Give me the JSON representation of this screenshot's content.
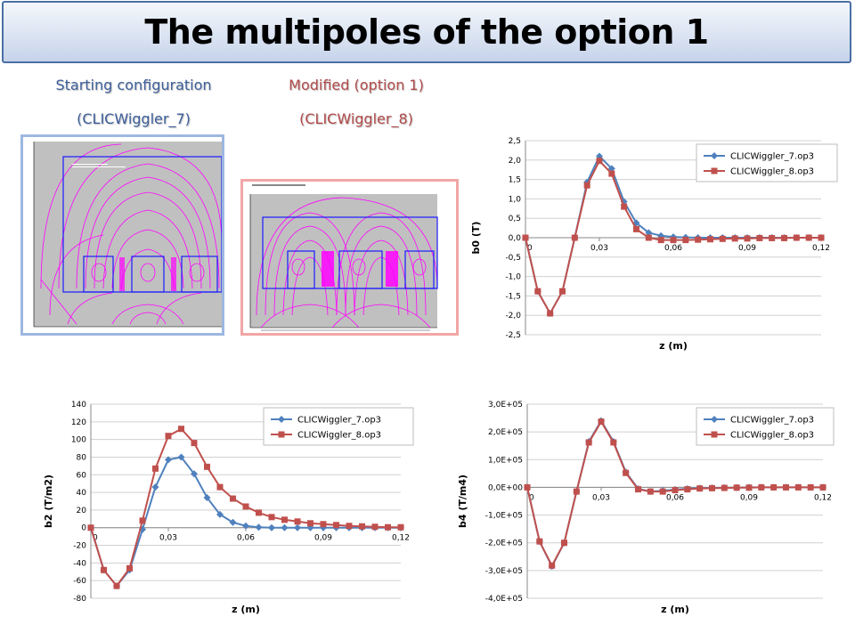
{
  "slide": {
    "title": "The multipoles of the option 1",
    "left_label_line1": "Starting configuration",
    "left_label_line2": "(CLICWiggler_7)",
    "right_label_line1": "Modified (option 1)",
    "right_label_line2": "(CLICWiggler_8)"
  },
  "colors": {
    "series_1": "#4f81bd",
    "series_2": "#c0504d",
    "title_border": "#4a6fa5",
    "field_lines": "#ff00ff",
    "thumb_background": "#c0c0c0"
  },
  "thumbnails": [
    {
      "icon": "magnetic-field-map-image",
      "frame_color": "#9db7e0",
      "caption": ""
    },
    {
      "icon": "magnetic-field-map-image",
      "frame_color": "#f2a6a6",
      "caption": ""
    }
  ],
  "chart_data": [
    {
      "type": "line",
      "ylabel": "b0 (T)",
      "xlabel": "z (m)",
      "x_ticks": [
        "0",
        "0,03",
        "0,06",
        "0,09",
        "0,12"
      ],
      "y_ticks": [
        "2,5",
        "2,0",
        "1,5",
        "1,0",
        "0,5",
        "0,0",
        "-0,5",
        "-1,0",
        "-1,5",
        "-2,0",
        "-2,5"
      ],
      "ylim": [
        -2.5,
        2.5
      ],
      "xlim": [
        0,
        0.12
      ],
      "grid": "horizontal",
      "legend": "top-right",
      "x": [
        0,
        0.005,
        0.01,
        0.015,
        0.02,
        0.025,
        0.03,
        0.035,
        0.04,
        0.045,
        0.05,
        0.055,
        0.06,
        0.065,
        0.07,
        0.075,
        0.08,
        0.085,
        0.09,
        0.095,
        0.1,
        0.105,
        0.11,
        0.115,
        0.12
      ],
      "series": [
        {
          "name": "CLICWiggler_7.op3",
          "values": [
            0,
            -1.38,
            -1.95,
            -1.38,
            0,
            1.43,
            2.1,
            1.78,
            0.93,
            0.38,
            0.13,
            0.05,
            0.02,
            0.01,
            0,
            0,
            0,
            0,
            0,
            0,
            0,
            0,
            0,
            0,
            0
          ]
        },
        {
          "name": "CLICWiggler_8.op3",
          "values": [
            0,
            -1.38,
            -1.95,
            -1.38,
            0,
            1.35,
            1.98,
            1.65,
            0.8,
            0.22,
            0,
            -0.06,
            -0.06,
            -0.06,
            -0.05,
            -0.04,
            -0.03,
            -0.02,
            -0.02,
            -0.01,
            -0.01,
            -0.01,
            0,
            0,
            0
          ]
        }
      ]
    },
    {
      "type": "line",
      "ylabel": "b2 (T/m2)",
      "xlabel": "z (m)",
      "x_ticks": [
        "0",
        "0,03",
        "0,06",
        "0,09",
        "0,12"
      ],
      "y_ticks": [
        "140",
        "120",
        "100",
        "80",
        "60",
        "40",
        "20",
        "0",
        "-20",
        "-40",
        "-60",
        "-80"
      ],
      "ylim": [
        -80,
        140
      ],
      "xlim": [
        0,
        0.12
      ],
      "grid": "horizontal",
      "legend": "top-right",
      "x": [
        0,
        0.005,
        0.01,
        0.015,
        0.02,
        0.025,
        0.03,
        0.035,
        0.04,
        0.045,
        0.05,
        0.055,
        0.06,
        0.065,
        0.07,
        0.075,
        0.08,
        0.085,
        0.09,
        0.095,
        0.1,
        0.105,
        0.11,
        0.115,
        0.12
      ],
      "series": [
        {
          "name": "CLICWiggler_7.op3",
          "values": [
            0,
            -48,
            -66,
            -48,
            -2,
            46,
            77,
            80,
            61,
            34,
            15,
            6,
            2,
            0.5,
            0,
            0,
            0,
            0,
            0,
            0,
            0,
            0,
            0,
            0,
            0
          ]
        },
        {
          "name": "CLICWiggler_8.op3",
          "values": [
            0,
            -48,
            -66,
            -46,
            8,
            67,
            104,
            112,
            96,
            69,
            46,
            33,
            24,
            17,
            12,
            9,
            7,
            5,
            4,
            3,
            2,
            1.5,
            1,
            0.5,
            0.5
          ]
        }
      ]
    },
    {
      "type": "line",
      "ylabel": "b4 (T/m4)",
      "xlabel": "z (m)",
      "x_ticks": [
        "0",
        "0,03",
        "0,06",
        "0,09",
        "0,12"
      ],
      "y_ticks": [
        "3,0E+05",
        "2,0E+05",
        "1,0E+05",
        "0,0E+00",
        "-1,0E+05",
        "-2,0E+05",
        "-3,0E+05",
        "-4,0E+05"
      ],
      "ylim": [
        -400000,
        300000
      ],
      "xlim": [
        0,
        0.12
      ],
      "grid": "horizontal",
      "legend": "top-right",
      "x": [
        0,
        0.005,
        0.01,
        0.015,
        0.02,
        0.025,
        0.03,
        0.035,
        0.04,
        0.045,
        0.05,
        0.055,
        0.06,
        0.065,
        0.07,
        0.075,
        0.08,
        0.085,
        0.09,
        0.095,
        0.1,
        0.105,
        0.11,
        0.115,
        0.12
      ],
      "series": [
        {
          "name": "CLICWiggler_7.op3",
          "values": [
            0,
            -195000,
            -285000,
            -200000,
            -15000,
            165000,
            240000,
            165000,
            55000,
            -5000,
            -15000,
            -12000,
            -8000,
            -5000,
            -3000,
            -2000,
            -1000,
            -1000,
            0,
            0,
            0,
            0,
            0,
            0,
            0
          ]
        },
        {
          "name": "CLICWiggler_8.op3",
          "values": [
            0,
            -195000,
            -282000,
            -200000,
            -15000,
            162000,
            237000,
            162000,
            52000,
            -7000,
            -15000,
            -15000,
            -10000,
            -7000,
            -4000,
            -3000,
            -2000,
            -1000,
            -1000,
            0,
            0,
            0,
            0,
            0,
            0
          ]
        }
      ]
    }
  ]
}
